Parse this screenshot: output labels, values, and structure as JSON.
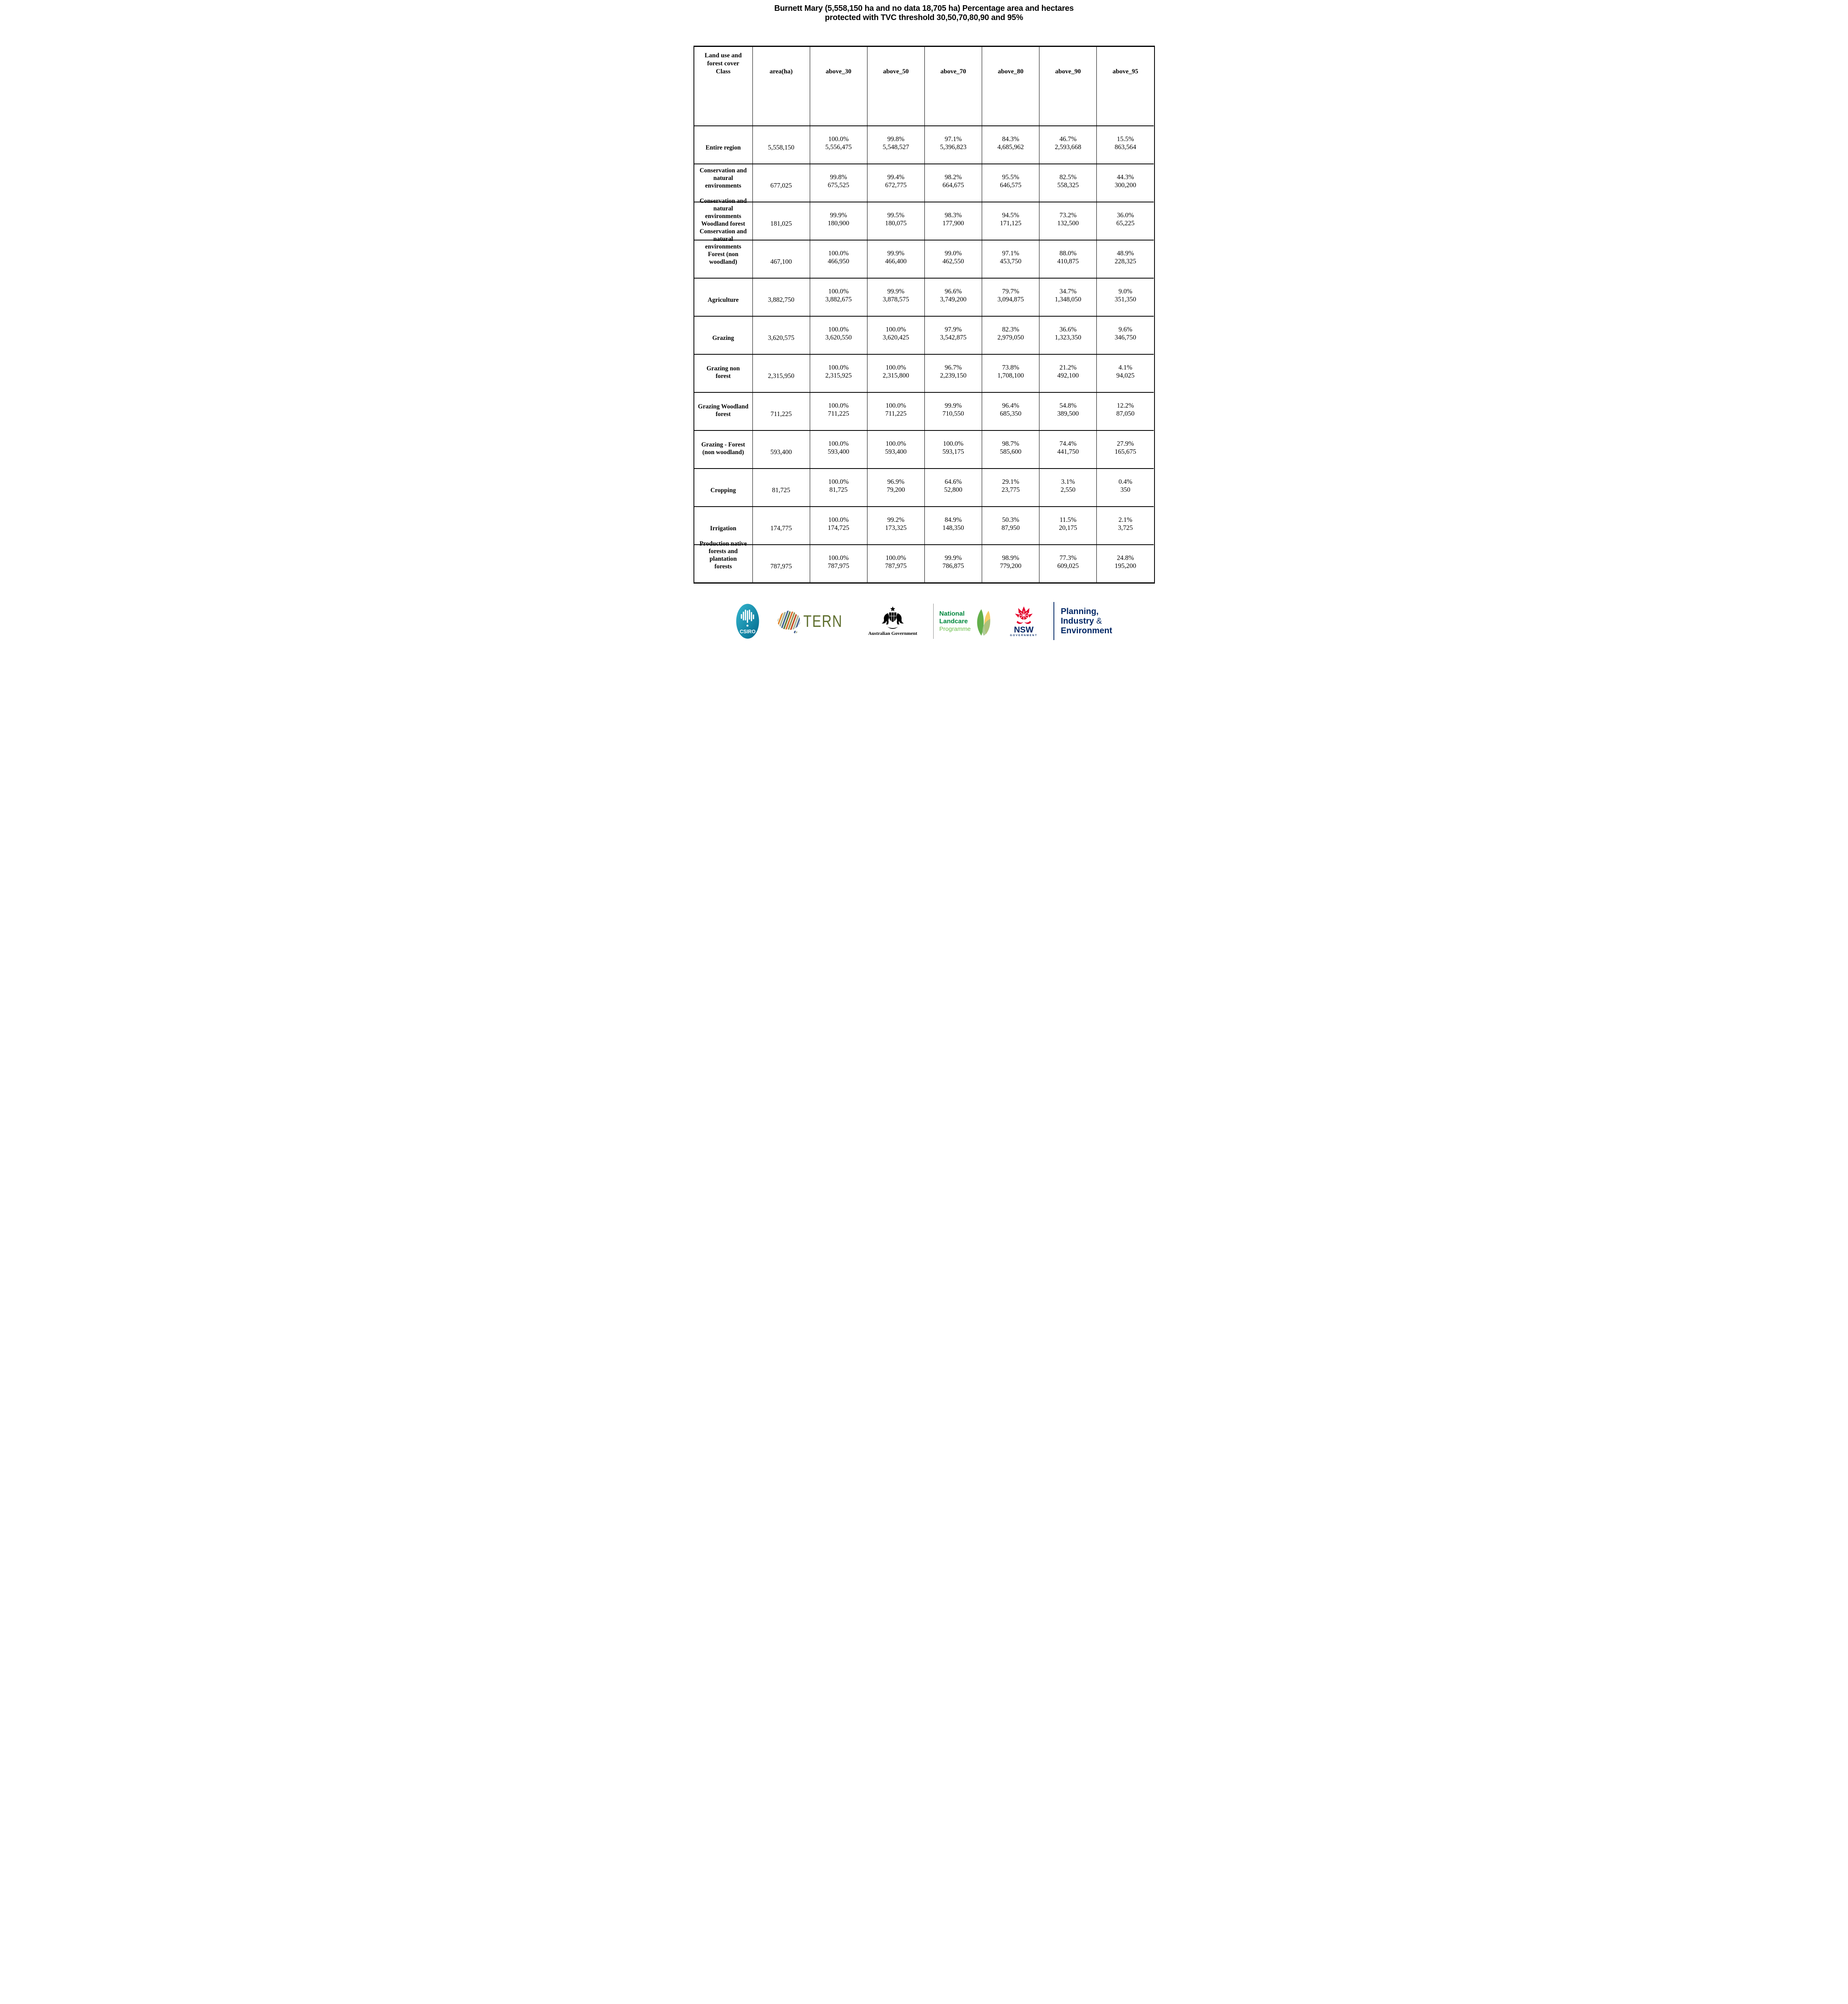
{
  "title": "Burnett Mary (5,558,150 ha and no data 18,705 ha) Percentage area and hectares protected with TVC threshold 30,50,70,80,90 and 95%",
  "table": {
    "columns": [
      "Land use and\nforest cover\nClass",
      "area(ha)",
      "above_30",
      "above_50",
      "above_70",
      "above_80",
      "above_90",
      "above_95"
    ],
    "rows": [
      {
        "label": "Entire region",
        "area": "5,558,150",
        "values": [
          [
            "100.0%",
            "5,556,475"
          ],
          [
            "99.8%",
            "5,548,527"
          ],
          [
            "97.1%",
            "5,396,823"
          ],
          [
            "84.3%",
            "4,685,962"
          ],
          [
            "46.7%",
            "2,593,668"
          ],
          [
            "15.5%",
            "863,564"
          ]
        ]
      },
      {
        "label": "Conservation and\nnatural\nenvironments",
        "area": "677,025",
        "values": [
          [
            "99.8%",
            "675,525"
          ],
          [
            "99.4%",
            "672,775"
          ],
          [
            "98.2%",
            "664,675"
          ],
          [
            "95.5%",
            "646,575"
          ],
          [
            "82.5%",
            "558,325"
          ],
          [
            "44.3%",
            "300,200"
          ]
        ]
      },
      {
        "label": "Conservation and\nnatural\nenvironments\nWoodland forest",
        "area": "181,025",
        "values": [
          [
            "99.9%",
            "180,900"
          ],
          [
            "99.5%",
            "180,075"
          ],
          [
            "98.3%",
            "177,900"
          ],
          [
            "94.5%",
            "171,125"
          ],
          [
            "73.2%",
            "132,500"
          ],
          [
            "36.0%",
            "65,225"
          ]
        ]
      },
      {
        "label": "Conservation and\nnatural\nenvironments\nForest (non\nwoodland)",
        "area": "467,100",
        "values": [
          [
            "100.0%",
            "466,950"
          ],
          [
            "99.9%",
            "466,400"
          ],
          [
            "99.0%",
            "462,550"
          ],
          [
            "97.1%",
            "453,750"
          ],
          [
            "88.0%",
            "410,875"
          ],
          [
            "48.9%",
            "228,325"
          ]
        ]
      },
      {
        "label": "Agriculture",
        "area": "3,882,750",
        "values": [
          [
            "100.0%",
            "3,882,675"
          ],
          [
            "99.9%",
            "3,878,575"
          ],
          [
            "96.6%",
            "3,749,200"
          ],
          [
            "79.7%",
            "3,094,875"
          ],
          [
            "34.7%",
            "1,348,050"
          ],
          [
            "9.0%",
            "351,350"
          ]
        ]
      },
      {
        "label": "Grazing",
        "area": "3,620,575",
        "values": [
          [
            "100.0%",
            "3,620,550"
          ],
          [
            "100.0%",
            "3,620,425"
          ],
          [
            "97.9%",
            "3,542,875"
          ],
          [
            "82.3%",
            "2,979,050"
          ],
          [
            "36.6%",
            "1,323,350"
          ],
          [
            "9.6%",
            "346,750"
          ]
        ]
      },
      {
        "label": "Grazing non\nforest",
        "area": "2,315,950",
        "values": [
          [
            "100.0%",
            "2,315,925"
          ],
          [
            "100.0%",
            "2,315,800"
          ],
          [
            "96.7%",
            "2,239,150"
          ],
          [
            "73.8%",
            "1,708,100"
          ],
          [
            "21.2%",
            "492,100"
          ],
          [
            "4.1%",
            "94,025"
          ]
        ]
      },
      {
        "label": "Grazing Woodland\nforest",
        "area": "711,225",
        "values": [
          [
            "100.0%",
            "711,225"
          ],
          [
            "100.0%",
            "711,225"
          ],
          [
            "99.9%",
            "710,550"
          ],
          [
            "96.4%",
            "685,350"
          ],
          [
            "54.8%",
            "389,500"
          ],
          [
            "12.2%",
            "87,050"
          ]
        ]
      },
      {
        "label": "Grazing - Forest\n(non woodland)",
        "area": "593,400",
        "values": [
          [
            "100.0%",
            "593,400"
          ],
          [
            "100.0%",
            "593,400"
          ],
          [
            "100.0%",
            "593,175"
          ],
          [
            "98.7%",
            "585,600"
          ],
          [
            "74.4%",
            "441,750"
          ],
          [
            "27.9%",
            "165,675"
          ]
        ]
      },
      {
        "label": "Cropping",
        "area": "81,725",
        "values": [
          [
            "100.0%",
            "81,725"
          ],
          [
            "96.9%",
            "79,200"
          ],
          [
            "64.6%",
            "52,800"
          ],
          [
            "29.1%",
            "23,775"
          ],
          [
            "3.1%",
            "2,550"
          ],
          [
            "0.4%",
            "350"
          ]
        ]
      },
      {
        "label": "Irrigation",
        "area": "174,775",
        "values": [
          [
            "100.0%",
            "174,725"
          ],
          [
            "99.2%",
            "173,325"
          ],
          [
            "84.9%",
            "148,350"
          ],
          [
            "50.3%",
            "87,950"
          ],
          [
            "11.5%",
            "20,175"
          ],
          [
            "2.1%",
            "3,725"
          ]
        ]
      },
      {
        "label": "Production native\nforests and\nplantation\nforests",
        "area": "787,975",
        "values": [
          [
            "100.0%",
            "787,975"
          ],
          [
            "100.0%",
            "787,975"
          ],
          [
            "99.9%",
            "786,875"
          ],
          [
            "98.9%",
            "779,200"
          ],
          [
            "77.3%",
            "609,025"
          ],
          [
            "24.8%",
            "195,200"
          ]
        ]
      }
    ]
  },
  "footer": {
    "csiro": "CSIRO",
    "tern": "TERN",
    "aus_gov": "Australian Government",
    "landcare_line1": "National",
    "landcare_line2": "Landcare",
    "landcare_line3": "Programme",
    "nsw": "NSW",
    "nsw_sub": "GOVERNMENT",
    "pie_line1": "Planning,",
    "pie_line2_a": "Industry",
    "pie_line2_b": "&",
    "pie_line3": "Environment"
  },
  "colors": {
    "csiro_teal_light": "#35b7cf",
    "csiro_teal_dark": "#00688c",
    "tern_olive": "#5f6f2f",
    "landcare_green": "#00883e",
    "landcare_light_green": "#6abf4b",
    "nsw_red": "#e4002b",
    "nsw_navy": "#002664",
    "table_border": "#000000"
  }
}
